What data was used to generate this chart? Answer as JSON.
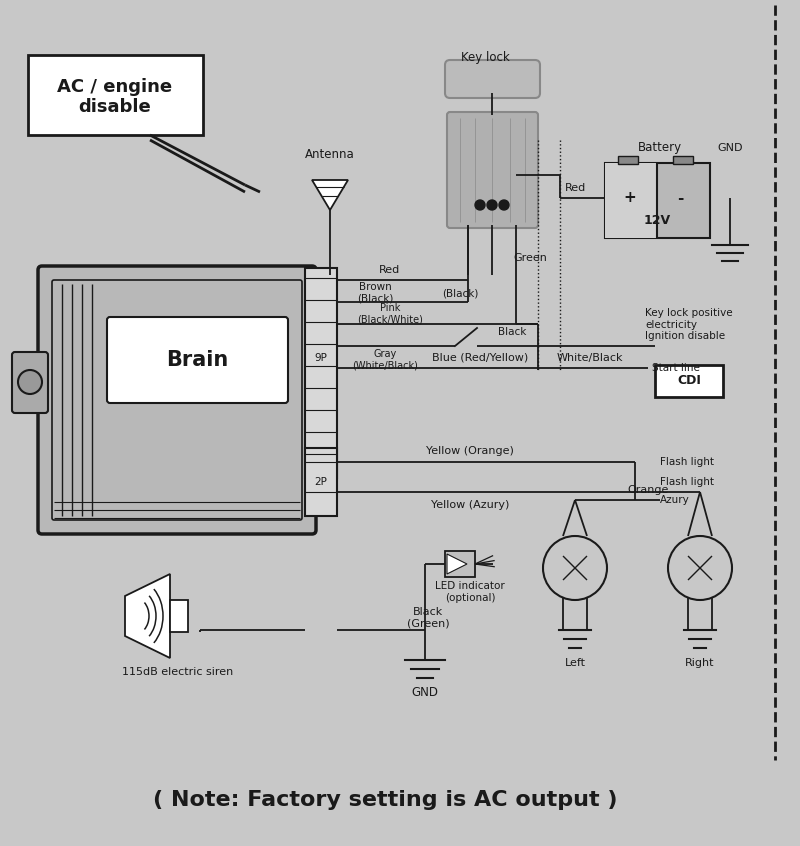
{
  "bg_color": "#c8c8c8",
  "line_color": "#1a1a1a",
  "white": "#ffffff",
  "gray_med": "#aaaaaa",
  "gray_light": "#d8d8d8",
  "title": "( Note: Factory setting is AC output )",
  "title_fontsize": 16,
  "labels": {
    "ac_engine": "AC / engine\ndisable",
    "antenna": "Antenna",
    "key_lock": "Key lock",
    "battery": "Battery",
    "brain": "Brain",
    "9p": "9P",
    "2p": "2P",
    "red1": "Red",
    "brown": "Brown\n(Black)",
    "black1": "(Black)",
    "pink": "Pink\n(Black/White)",
    "gray": "Gray\n(White/Black)",
    "black2": "Black",
    "white_black": "White/Black",
    "green": "Green",
    "red2": "Red",
    "gnd1": "GND",
    "12v": "12V",
    "key_lock_pos": "Key lock positive\nelectricity\nIgnition disable",
    "cdi": "CDI",
    "blue": "Blue (Red/Yellow)",
    "start_line": "Start line",
    "yellow_orange": "Yellow (Orange)",
    "orange": "Orange",
    "flash_light1": "Flash light",
    "yellow_azury": "Yellow (Azury)",
    "flash_light2": "Flash light",
    "azury": "Azury",
    "led": "LED indicator\n(optional)",
    "black_green": "Black\n(Green)",
    "gnd2": "GND",
    "siren": "115dB electric siren",
    "left": "Left",
    "right": "Right"
  }
}
